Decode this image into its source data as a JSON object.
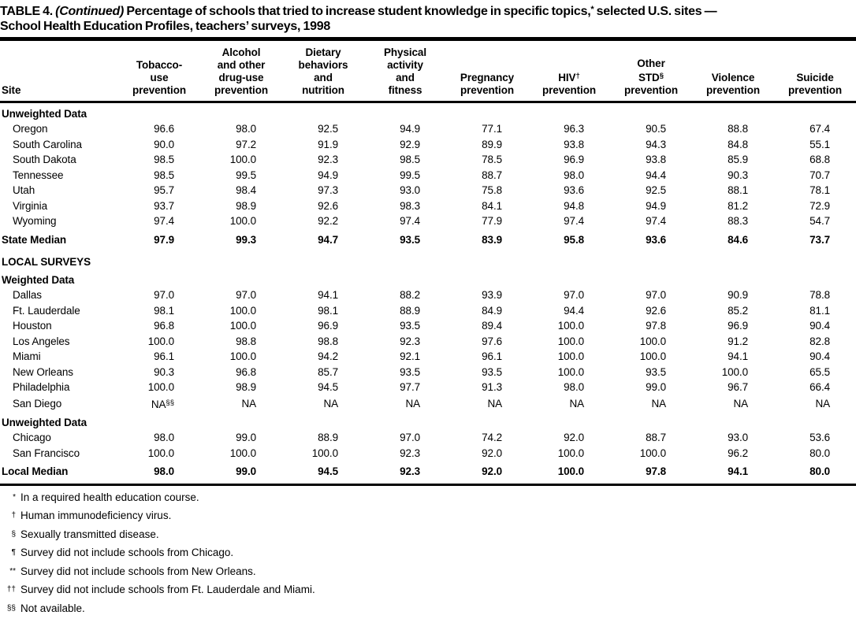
{
  "title": {
    "label": "TABLE 4. ",
    "continued": "(Continued)",
    "after_continued": " Percentage of schools that tried to increase student knowledge in specific topics,",
    "star": "*",
    "line1_end": " selected U.S. sites —",
    "line2": "School Health Education Profiles, teachers’ surveys, 1998"
  },
  "table": {
    "columns": [
      {
        "key": "site",
        "lines": [
          {
            "t": "Site"
          }
        ]
      },
      {
        "key": "tobacco",
        "lines": [
          {
            "t": "Tobacco-"
          },
          {
            "t": "use"
          },
          {
            "t": "prevention"
          }
        ]
      },
      {
        "key": "alcohol",
        "lines": [
          {
            "t": "Alcohol"
          },
          {
            "t": "and other"
          },
          {
            "t": "drug-use"
          },
          {
            "t": "prevention"
          }
        ]
      },
      {
        "key": "dietary",
        "lines": [
          {
            "t": "Dietary"
          },
          {
            "t": "behaviors"
          },
          {
            "t": "and"
          },
          {
            "t": "nutrition"
          }
        ]
      },
      {
        "key": "physical",
        "lines": [
          {
            "t": "Physical"
          },
          {
            "t": "activity"
          },
          {
            "t": "and"
          },
          {
            "t": "fitness"
          }
        ]
      },
      {
        "key": "pregnancy",
        "lines": [
          {
            "t": "Pregnancy"
          },
          {
            "t": "prevention"
          }
        ]
      },
      {
        "key": "hiv",
        "lines": [
          {
            "t": "HIV",
            "sup": "†"
          },
          {
            "t": "prevention"
          }
        ]
      },
      {
        "key": "std",
        "lines": [
          {
            "t": "Other"
          },
          {
            "t": "STD",
            "sup": "§"
          },
          {
            "t": "prevention"
          }
        ]
      },
      {
        "key": "violence",
        "lines": [
          {
            "t": "Violence"
          },
          {
            "t": "prevention"
          }
        ]
      },
      {
        "key": "suicide",
        "lines": [
          {
            "t": "Suicide"
          },
          {
            "t": "prevention"
          }
        ]
      }
    ],
    "body": [
      {
        "type": "section",
        "label": "Unweighted Data"
      },
      {
        "type": "data",
        "site": "Oregon",
        "values": [
          "96.6",
          "98.0",
          "92.5",
          "94.9",
          "77.1",
          "96.3",
          "90.5",
          "88.8",
          "67.4"
        ]
      },
      {
        "type": "data",
        "site": "South Carolina",
        "values": [
          "90.0",
          "97.2",
          "91.9",
          "92.9",
          "89.9",
          "93.8",
          "94.3",
          "84.8",
          "55.1"
        ]
      },
      {
        "type": "data",
        "site": "South Dakota",
        "values": [
          "98.5",
          "100.0",
          "92.3",
          "98.5",
          "78.5",
          "96.9",
          "93.8",
          "85.9",
          "68.8"
        ]
      },
      {
        "type": "data",
        "site": "Tennessee",
        "values": [
          "98.5",
          "99.5",
          "94.9",
          "99.5",
          "88.7",
          "98.0",
          "94.4",
          "90.3",
          "70.7"
        ]
      },
      {
        "type": "data",
        "site": "Utah",
        "values": [
          "95.7",
          "98.4",
          "97.3",
          "93.0",
          "75.8",
          "93.6",
          "92.5",
          "88.1",
          "78.1"
        ]
      },
      {
        "type": "data",
        "site": "Virginia",
        "values": [
          "93.7",
          "98.9",
          "92.6",
          "98.3",
          "84.1",
          "94.8",
          "94.9",
          "81.2",
          "72.9"
        ]
      },
      {
        "type": "data",
        "site": "Wyoming",
        "values": [
          "97.4",
          "100.0",
          "92.2",
          "97.4",
          "77.9",
          "97.4",
          "97.4",
          "88.3",
          "54.7"
        ]
      },
      {
        "type": "median",
        "site": "State Median",
        "values": [
          "97.9",
          "99.3",
          "94.7",
          "93.5",
          "83.9",
          "95.8",
          "93.6",
          "84.6",
          "73.7"
        ]
      },
      {
        "type": "section",
        "label": "LOCAL SURVEYS"
      },
      {
        "type": "section",
        "label": "Weighted Data"
      },
      {
        "type": "data",
        "site": "Dallas",
        "values": [
          "97.0",
          "97.0",
          "94.1",
          "88.2",
          "93.9",
          "97.0",
          "97.0",
          "90.9",
          "78.8"
        ]
      },
      {
        "type": "data",
        "site": "Ft. Lauderdale",
        "values": [
          "98.1",
          "100.0",
          "98.1",
          "88.9",
          "84.9",
          "94.4",
          "92.6",
          "85.2",
          "81.1"
        ]
      },
      {
        "type": "data",
        "site": "Houston",
        "values": [
          "96.8",
          "100.0",
          "96.9",
          "93.5",
          "89.4",
          "100.0",
          "97.8",
          "96.9",
          "90.4"
        ]
      },
      {
        "type": "data",
        "site": "Los Angeles",
        "values": [
          "100.0",
          "98.8",
          "98.8",
          "92.3",
          "97.6",
          "100.0",
          "100.0",
          "91.2",
          "82.8"
        ]
      },
      {
        "type": "data",
        "site": "Miami",
        "values": [
          "96.1",
          "100.0",
          "94.2",
          "92.1",
          "96.1",
          "100.0",
          "100.0",
          "94.1",
          "90.4"
        ]
      },
      {
        "type": "data",
        "site": "New Orleans",
        "values": [
          "90.3",
          "96.8",
          "85.7",
          "93.5",
          "93.5",
          "100.0",
          "93.5",
          "100.0",
          "65.5"
        ]
      },
      {
        "type": "data",
        "site": "Philadelphia",
        "values": [
          "100.0",
          "98.9",
          "94.5",
          "97.7",
          "91.3",
          "98.0",
          "99.0",
          "96.7",
          "66.4"
        ]
      },
      {
        "type": "data",
        "site": "San Diego",
        "values": [
          {
            "t": "NA",
            "sup": "§§"
          },
          "NA",
          "NA",
          "NA",
          "NA",
          "NA",
          "NA",
          "NA",
          "NA"
        ]
      },
      {
        "type": "section",
        "label": "Unweighted Data"
      },
      {
        "type": "data",
        "site": "Chicago",
        "values": [
          "98.0",
          "99.0",
          "88.9",
          "97.0",
          "74.2",
          "92.0",
          "88.7",
          "93.0",
          "53.6"
        ]
      },
      {
        "type": "data",
        "site": "San Francisco",
        "values": [
          "100.0",
          "100.0",
          "100.0",
          "92.3",
          "92.0",
          "100.0",
          "100.0",
          "96.2",
          "80.0"
        ]
      },
      {
        "type": "median",
        "site": "Local Median",
        "values": [
          "98.0",
          "99.0",
          "94.5",
          "92.3",
          "92.0",
          "100.0",
          "97.8",
          "94.1",
          "80.0"
        ]
      }
    ]
  },
  "footnotes": [
    {
      "marker": "*",
      "text": "In a required health education course."
    },
    {
      "marker": "†",
      "text": "Human immunodeficiency virus."
    },
    {
      "marker": "§",
      "text": "Sexually transmitted disease."
    },
    {
      "marker": "¶",
      "text": "Survey did not include schools from Chicago."
    },
    {
      "marker": "**",
      "text": "Survey did not include schools from New Orleans."
    },
    {
      "marker": "††",
      "text": "Survey did not include schools from Ft. Lauderdale and Miami."
    },
    {
      "marker": "§§",
      "text": "Not available."
    }
  ]
}
